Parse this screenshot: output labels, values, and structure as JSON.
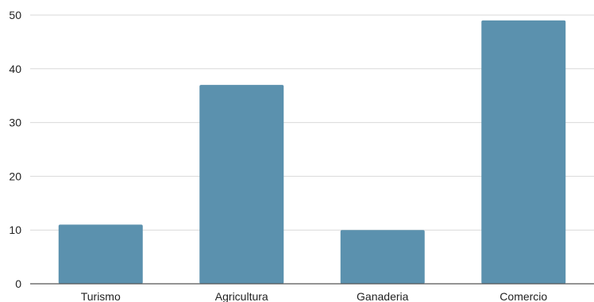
{
  "chart_data": {
    "type": "bar",
    "title": "",
    "xlabel": "",
    "ylabel": "",
    "categories": [
      "Turismo",
      "Agricultura",
      "Ganaderia",
      "Comercio"
    ],
    "values": [
      11,
      37,
      10,
      49
    ],
    "ylim": [
      0,
      50
    ],
    "yticks": [
      "0",
      "10",
      "20",
      "30",
      "40",
      "50"
    ],
    "grid": true,
    "legend": "none",
    "bar_color": "#5b91ae",
    "grid_color": "#d9d9d9",
    "axis_color": "#555555"
  }
}
